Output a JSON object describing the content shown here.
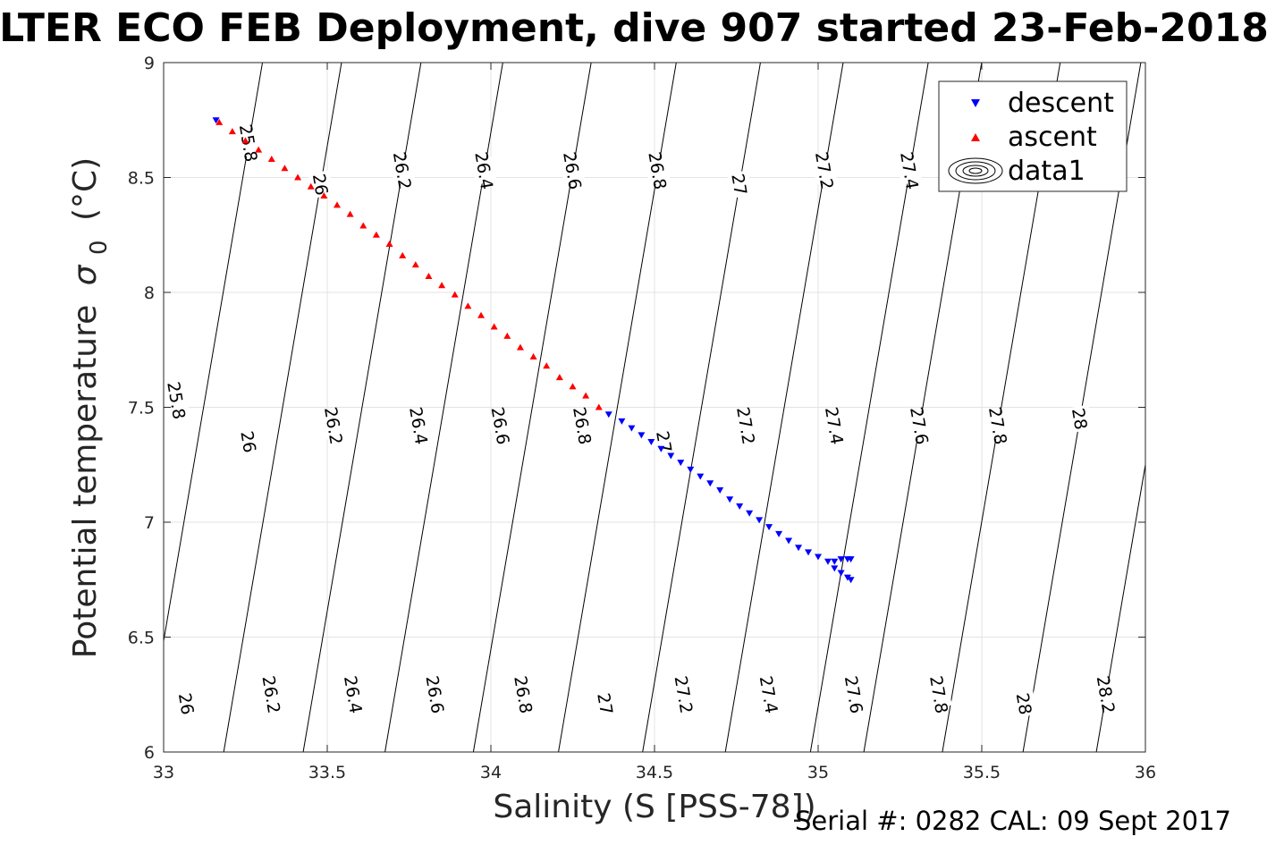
{
  "chart_data": {
    "type": "scatter",
    "title": "LTER ECO FEB Deployment, dive 907 started 23-Feb-2018",
    "xlabel": "Salinity (S [PSS-78])",
    "ylabel_main": "Potential temperature",
    "ylabel_sigma": "σ",
    "ylabel_sub": "0",
    "ylabel_unit": "(°C)",
    "footer": "Serial #: 0282  CAL: 09 Sept 2017",
    "xlim": [
      33,
      36
    ],
    "ylim": [
      6,
      9
    ],
    "x_ticks": [
      33,
      33.5,
      34,
      34.5,
      35,
      35.5,
      36
    ],
    "x_tick_labels": [
      "33",
      "33.5",
      "34",
      "34.5",
      "35",
      "35.5",
      "36"
    ],
    "y_ticks": [
      6,
      6.5,
      7,
      7.5,
      8,
      8.5,
      9
    ],
    "y_tick_labels": [
      "6",
      "6.5",
      "7",
      "7.5",
      "8",
      "8.5",
      "9"
    ],
    "grid": true,
    "legend_position": "top-right",
    "legend": [
      {
        "label": "descent",
        "marker": "triangle-down",
        "color": "#0000ff"
      },
      {
        "label": "ascent",
        "marker": "triangle-up",
        "color": "#ff0000"
      },
      {
        "label": "data1",
        "marker": "contour-icon",
        "color": "#000000"
      }
    ],
    "series": [
      {
        "name": "descent",
        "color": "#0000ff",
        "marker": "triangle-down",
        "points": [
          [
            33.16,
            8.75
          ],
          [
            34.36,
            7.47
          ],
          [
            34.4,
            7.44
          ],
          [
            34.43,
            7.41
          ],
          [
            34.46,
            7.38
          ],
          [
            34.49,
            7.35
          ],
          [
            34.52,
            7.32
          ],
          [
            34.55,
            7.29
          ],
          [
            34.58,
            7.26
          ],
          [
            34.61,
            7.23
          ],
          [
            34.64,
            7.2
          ],
          [
            34.67,
            7.17
          ],
          [
            34.7,
            7.14
          ],
          [
            34.73,
            7.1
          ],
          [
            34.76,
            7.07
          ],
          [
            34.79,
            7.04
          ],
          [
            34.82,
            7.01
          ],
          [
            34.85,
            6.98
          ],
          [
            34.88,
            6.95
          ],
          [
            34.91,
            6.92
          ],
          [
            34.94,
            6.89
          ],
          [
            34.97,
            6.87
          ],
          [
            35.0,
            6.85
          ],
          [
            35.03,
            6.83
          ],
          [
            35.05,
            6.83
          ],
          [
            35.07,
            6.84
          ],
          [
            35.09,
            6.84
          ],
          [
            35.1,
            6.84
          ],
          [
            35.05,
            6.8
          ],
          [
            35.07,
            6.78
          ],
          [
            35.09,
            6.76
          ],
          [
            35.1,
            6.75
          ]
        ]
      },
      {
        "name": "ascent",
        "color": "#ff0000",
        "marker": "triangle-up",
        "points": [
          [
            33.17,
            8.74
          ],
          [
            33.21,
            8.7
          ],
          [
            33.25,
            8.66
          ],
          [
            33.29,
            8.62
          ],
          [
            33.33,
            8.58
          ],
          [
            33.37,
            8.54
          ],
          [
            33.41,
            8.5
          ],
          [
            33.45,
            8.46
          ],
          [
            33.49,
            8.42
          ],
          [
            33.53,
            8.38
          ],
          [
            33.57,
            8.34
          ],
          [
            33.61,
            8.29
          ],
          [
            33.65,
            8.25
          ],
          [
            33.69,
            8.21
          ],
          [
            33.73,
            8.16
          ],
          [
            33.77,
            8.12
          ],
          [
            33.81,
            8.07
          ],
          [
            33.85,
            8.03
          ],
          [
            33.89,
            7.99
          ],
          [
            33.93,
            7.94
          ],
          [
            33.97,
            7.9
          ],
          [
            34.01,
            7.85
          ],
          [
            34.05,
            7.81
          ],
          [
            34.09,
            7.76
          ],
          [
            34.13,
            7.72
          ],
          [
            34.17,
            7.68
          ],
          [
            34.21,
            7.63
          ],
          [
            34.25,
            7.59
          ],
          [
            34.29,
            7.55
          ],
          [
            34.33,
            7.5
          ]
        ]
      }
    ],
    "contours": [
      {
        "level": "25.8",
        "label_points": [
          [
            33.26,
            8.65
          ],
          [
            33.04,
            7.53
          ]
        ]
      },
      {
        "level": "26",
        "label_points": [
          [
            33.48,
            8.47
          ],
          [
            33.26,
            7.35
          ],
          [
            33.07,
            6.21
          ]
        ]
      },
      {
        "level": "26.2",
        "label_points": [
          [
            33.73,
            8.53
          ],
          [
            33.52,
            7.42
          ],
          [
            33.33,
            6.25
          ]
        ]
      },
      {
        "level": "26.4",
        "label_points": [
          [
            33.98,
            8.53
          ],
          [
            33.78,
            7.42
          ],
          [
            33.58,
            6.25
          ]
        ]
      },
      {
        "level": "26.6",
        "label_points": [
          [
            34.25,
            8.53
          ],
          [
            34.03,
            7.42
          ],
          [
            33.83,
            6.25
          ]
        ]
      },
      {
        "level": "26.8",
        "label_points": [
          [
            34.51,
            8.53
          ],
          [
            34.28,
            7.42
          ],
          [
            34.1,
            6.25
          ]
        ]
      },
      {
        "level": "27",
        "label_points": [
          [
            34.76,
            8.47
          ],
          [
            34.53,
            7.35
          ],
          [
            34.35,
            6.21
          ]
        ]
      },
      {
        "level": "27.2",
        "label_points": [
          [
            35.02,
            8.53
          ],
          [
            34.78,
            7.42
          ],
          [
            34.59,
            6.25
          ]
        ]
      },
      {
        "level": "27.4",
        "label_points": [
          [
            35.28,
            8.53
          ],
          [
            35.05,
            7.42
          ],
          [
            34.85,
            6.25
          ]
        ]
      },
      {
        "level": "27.6",
        "label_points": [
          [
            35.31,
            7.42
          ],
          [
            35.11,
            6.25
          ]
        ]
      },
      {
        "level": "27.8",
        "label_points": [
          [
            35.55,
            7.42
          ],
          [
            35.37,
            6.25
          ]
        ]
      },
      {
        "level": "28",
        "label_points": [
          [
            35.8,
            7.45
          ],
          [
            35.63,
            6.21
          ]
        ]
      },
      {
        "level": "28.2",
        "label_points": [
          [
            35.88,
            6.25
          ]
        ]
      }
    ]
  }
}
